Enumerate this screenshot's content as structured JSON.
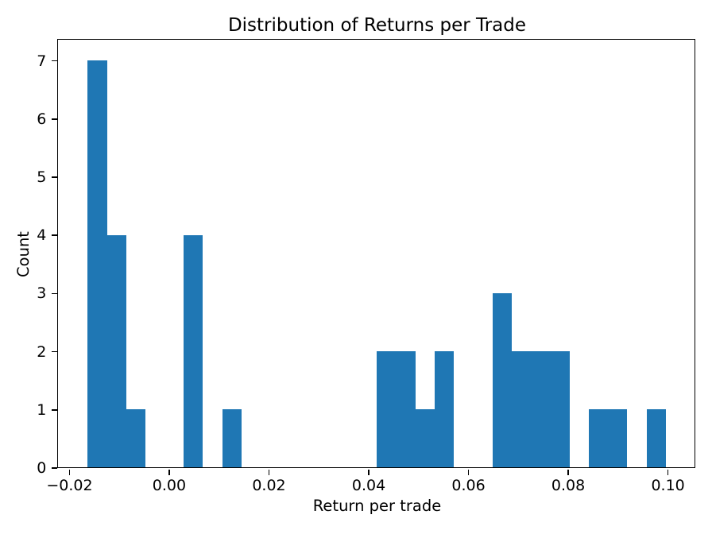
{
  "chart_data": {
    "type": "bar",
    "subtype": "histogram",
    "title": "Distribution of Returns per Trade",
    "xlabel": "Return per trade",
    "ylabel": "Count",
    "bar_color": "#1f77b4",
    "axis_color": "#000000",
    "background_color": "#ffffff",
    "grid": false,
    "legend": false,
    "n_bins": 30,
    "bin_start": -0.016339,
    "bin_width": 0.0038672,
    "counts": [
      7,
      4,
      1,
      0,
      0,
      4,
      0,
      1,
      0,
      0,
      0,
      0,
      0,
      0,
      0,
      2,
      2,
      1,
      2,
      0,
      0,
      3,
      2,
      2,
      2,
      0,
      1,
      1,
      0,
      1
    ],
    "xlim": [
      -0.02214,
      0.10548
    ],
    "ylim": [
      0,
      7.35
    ],
    "xticks": [
      -0.02,
      0.0,
      0.02,
      0.04,
      0.06,
      0.08,
      0.1
    ],
    "xtick_labels": [
      "−0.02",
      "0.00",
      "0.02",
      "0.04",
      "0.06",
      "0.08",
      "0.10"
    ],
    "yticks": [
      0,
      1,
      2,
      3,
      4,
      5,
      6,
      7
    ],
    "ytick_labels": [
      "0",
      "1",
      "2",
      "3",
      "4",
      "5",
      "6",
      "7"
    ]
  }
}
